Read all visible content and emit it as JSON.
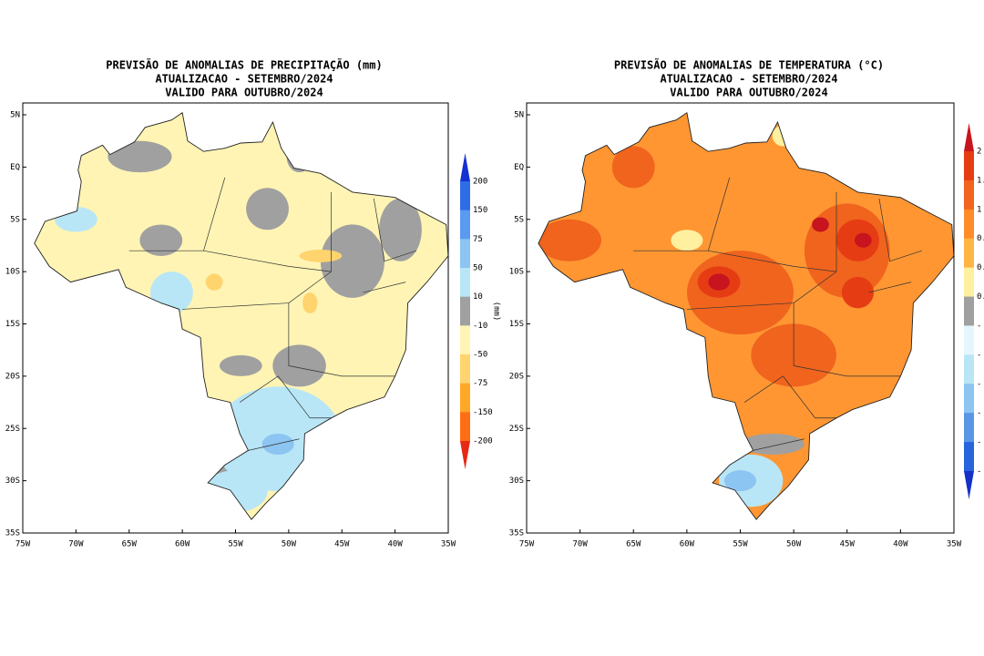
{
  "maps": [
    {
      "title_lines": [
        "PREVISÃO DE ANOMALIAS DE PRECIPITAÇÃO (mm)",
        "ATUALIZACAO - SETEMBRO/2024",
        "VALIDO PARA OUTUBRO/2024"
      ],
      "lat_labels": [
        "5N",
        "EQ",
        "5S",
        "10S",
        "15S",
        "20S",
        "25S",
        "30S",
        "35S"
      ],
      "lon_labels": [
        "75W",
        "70W",
        "65W",
        "60W",
        "55W",
        "50W",
        "45W",
        "40W",
        "35W"
      ],
      "colorbar_labels": [
        "200",
        "150",
        "75",
        "50",
        "10",
        "-10",
        "-50",
        "-75",
        "-150",
        "-200"
      ],
      "colorbar_colors": [
        "#1432d2",
        "#2d6ee6",
        "#5a9af0",
        "#8cc4f2",
        "#b8e6f6",
        "#a0a0a0",
        "#fff4b4",
        "#ffd46e",
        "#ffa828",
        "#ff6e14",
        "#e62814"
      ],
      "unit_label": "(mm)"
    },
    {
      "title_lines": [
        "PREVISÃO DE ANOMALIAS DE TEMPERATURA (°C)",
        "ATUALIZACAO - SETEMBRO/2024",
        "VALIDO PARA OUTUBRO/2024"
      ],
      "lat_labels": [
        "5N",
        "EQ",
        "5S",
        "10S",
        "15S",
        "20S",
        "25S",
        "30S",
        "35S"
      ],
      "lon_labels": [
        "75W",
        "70W",
        "65W",
        "60W",
        "55W",
        "50W",
        "45W",
        "40W",
        "35W"
      ],
      "colorbar_labels": [
        "2",
        "1.",
        "1",
        "0.",
        "0.",
        "0.",
        "-",
        "-",
        "-",
        "-",
        "-",
        "-"
      ],
      "colorbar_colors": [
        "#c8141e",
        "#e63c14",
        "#f0641e",
        "#ff8c28",
        "#ffb446",
        "#fff0a0",
        "#a0a0a0",
        "#e6f6ff",
        "#b8e6f6",
        "#8cc4f2",
        "#5a96e6",
        "#2864dc",
        "#1432c8"
      ]
    }
  ]
}
